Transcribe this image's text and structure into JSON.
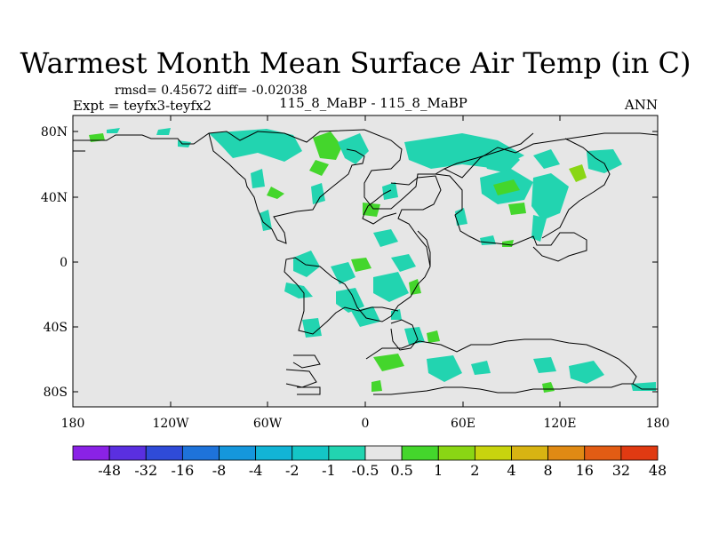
{
  "map": {
    "title": "Warmest Month Mean Surface Air Temp (in C)",
    "stats": "rmsd= 0.45672 diff= -0.02038",
    "expt": "Expt = teyfx3-teyfx2",
    "run": "115_8_MaBP - 115_8_MaBP",
    "season": "ANN",
    "background_color": "#e6e6e6",
    "lat_ticks": [
      "80N",
      "40N",
      "0",
      "40S",
      "80S"
    ],
    "lon_ticks": [
      "180",
      "120W",
      "60W",
      "0",
      "60E",
      "120E",
      "180"
    ]
  },
  "colorbar": {
    "labels": [
      "-48",
      "-32",
      "-16",
      "-8",
      "-4",
      "-2",
      "-1",
      "-0.5",
      "0.5",
      "1",
      "2",
      "4",
      "8",
      "16",
      "32",
      "48"
    ],
    "colors": [
      "#8a22e6",
      "#5a2fe0",
      "#2f4bd8",
      "#1e73da",
      "#1597dc",
      "#12b4d6",
      "#14c6c6",
      "#22d4b0",
      "#e6e6e6",
      "#44d62c",
      "#8ad614",
      "#c8d40e",
      "#d8b412",
      "#e08a14",
      "#e25c14",
      "#e03a12"
    ]
  }
}
